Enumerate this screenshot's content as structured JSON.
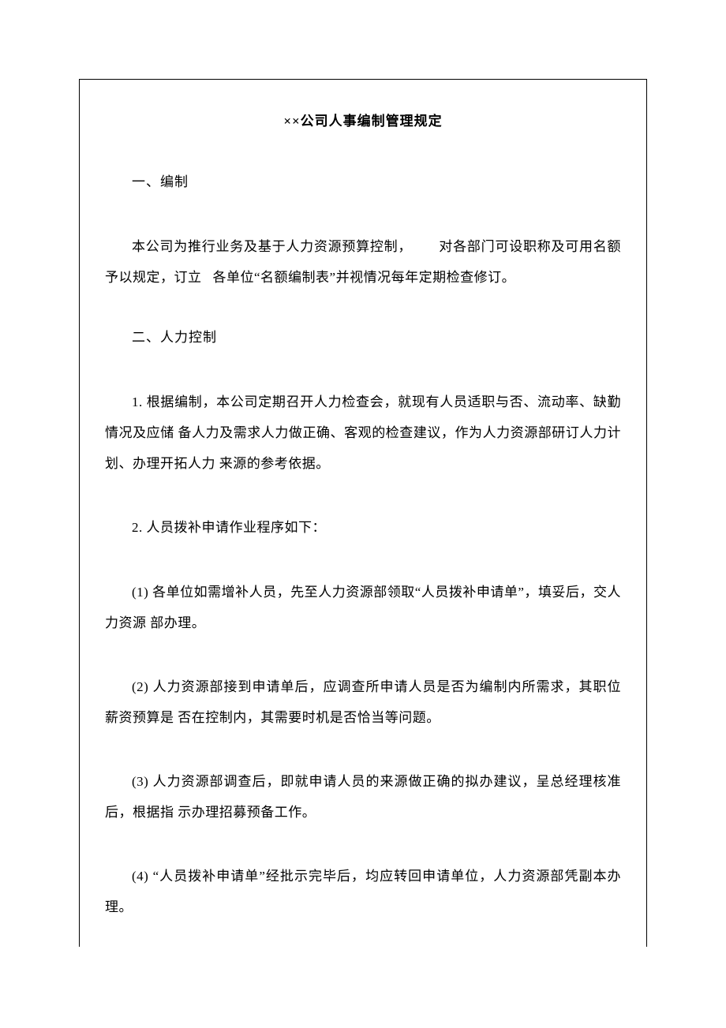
{
  "title": "××公司人事编制管理规定",
  "sections": {
    "s1": {
      "heading": "一、编制",
      "p1_a": "本公司为推行业务及基于人力资源预算控制，",
      "p1_b": "对各部门可设职称及可用名额予以规定，订立",
      "p1_c": "各单位“名额编制表”并视情况每年定期检查修订。"
    },
    "s2": {
      "heading": "二、人力控制",
      "p1": "1. 根据编制，本公司定期召开人力检查会，就现有人员适职与否、流动率、缺勤情况及应储 备人力及需求人力做正确、客观的检查建议，作为人力资源部研订人力计划、办理开拓人力 来源的参考依据。",
      "p2": "2. 人员拨补申请作业程序如下：",
      "p3": "(1) 各单位如需增补人员，先至人力资源部领取“人员拨补申请单”，填妥后，交人力资源 部办理。",
      "p4": "(2) 人力资源部接到申请单后，应调查所申请人员是否为编制内所需求，其职位薪资预算是 否在控制内，其需要时机是否恰当等问题。",
      "p5": "(3) 人力资源部调查后，即就申请人员的来源做正确的拟办建议，呈总经理核准后，根据指 示办理招募预备工作。",
      "p6": "(4) “人员拨补申请单”经批示完毕后，均应转回申请单位，人力资源部凭副本办理。"
    }
  }
}
